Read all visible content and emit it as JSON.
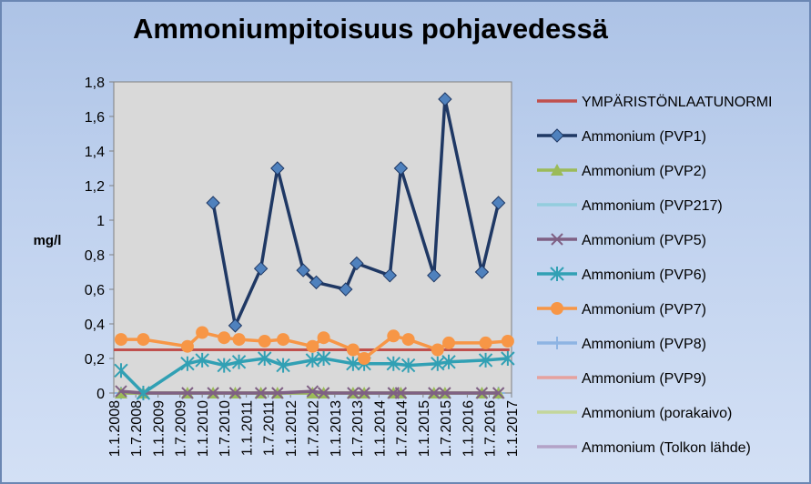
{
  "chart_data": {
    "type": "line",
    "title": "Ammoniumpitoisuus pohjavedessä",
    "ylabel": "mg/l",
    "xlabel": "",
    "ylim": [
      0,
      1.8
    ],
    "y_ticks": [
      "0",
      "0,2",
      "0,4",
      "0,6",
      "0,8",
      "1",
      "1,2",
      "1,4",
      "1,6",
      "1,8"
    ],
    "x_ticks": [
      "1.1.2008",
      "1.7.2008",
      "1.1.2009",
      "1.7.2009",
      "1.1.2010",
      "1.7.2010",
      "1.1.2011",
      "1.7.2011",
      "1.1.2012",
      "1.7.2012",
      "1.1.2013",
      "1.7.2013",
      "1.1.2014",
      "1.7.2014",
      "1.1.2015",
      "1.7.2015",
      "1.1.2016",
      "1.7.2016",
      "1.1.2017"
    ],
    "grid": false,
    "legend_position": "right",
    "plot_background": "#d9d9d9",
    "series": [
      {
        "name": "YMPÄRISTÖNLAATUNORMI",
        "color": "#c0504d",
        "marker": "none",
        "x": [
          "2008-01-01",
          "2016-12-15"
        ],
        "values": [
          0.25,
          0.25
        ]
      },
      {
        "name": "Ammonium (PVP1)",
        "color": "#1f3864",
        "marker": "diamond",
        "x": [
          "2010-04-01",
          "2010-10-01",
          "2011-05-01",
          "2011-09-15",
          "2012-04-15",
          "2012-08-01",
          "2013-04-01",
          "2013-07-01",
          "2014-04-01",
          "2014-07-01",
          "2015-04-01",
          "2015-07-01",
          "2016-05-01",
          "2016-09-15"
        ],
        "values": [
          1.1,
          0.39,
          0.72,
          1.3,
          0.71,
          0.64,
          0.6,
          0.75,
          0.68,
          1.3,
          0.68,
          1.7,
          0.7,
          1.1
        ]
      },
      {
        "name": "Ammonium (PVP2)",
        "color": "#9bbb59",
        "marker": "triangle",
        "x": [
          "2008-03-01",
          "2008-09-01",
          "2009-09-01",
          "2010-04-01",
          "2010-10-01",
          "2011-05-01",
          "2011-09-15",
          "2012-07-01",
          "2012-10-01",
          "2013-06-01",
          "2013-09-01",
          "2014-05-01",
          "2014-07-01",
          "2015-04-01",
          "2015-07-01",
          "2016-05-01",
          "2016-09-15"
        ],
        "values": [
          0,
          0,
          0,
          0,
          0,
          0,
          0,
          0,
          0,
          0,
          0,
          0,
          0,
          0,
          0,
          0,
          0
        ]
      },
      {
        "name": "Ammonium (PVP217)",
        "color": "#93cddd",
        "marker": "none",
        "x": [
          "2008-03-01",
          "2016-09-15"
        ],
        "values": [
          0,
          0
        ]
      },
      {
        "name": "Ammonium (PVP5)",
        "color": "#7f6084",
        "marker": "x",
        "x": [
          "2008-03-01",
          "2008-09-01",
          "2009-09-01",
          "2010-04-01",
          "2010-10-01",
          "2011-05-01",
          "2011-09-15",
          "2012-07-01",
          "2012-10-01",
          "2013-06-01",
          "2013-09-01",
          "2014-05-01",
          "2014-07-01",
          "2015-04-01",
          "2015-07-01",
          "2016-05-01",
          "2016-09-15"
        ],
        "values": [
          0.01,
          0,
          0,
          0,
          0,
          0,
          0,
          0.01,
          0,
          0,
          0,
          0,
          0,
          0,
          0,
          0,
          0
        ]
      },
      {
        "name": "Ammonium (PVP6)",
        "color": "#31a0b4",
        "marker": "asterisk",
        "x": [
          "2008-03-01",
          "2008-09-01",
          "2009-09-01",
          "2010-01-01",
          "2010-07-01",
          "2010-11-01",
          "2011-06-01",
          "2011-11-01",
          "2012-07-01",
          "2012-10-01",
          "2013-06-01",
          "2013-09-01",
          "2014-05-01",
          "2014-09-01",
          "2015-05-01",
          "2015-08-01",
          "2016-06-01",
          "2016-12-01"
        ],
        "values": [
          0.13,
          0,
          0.17,
          0.19,
          0.16,
          0.18,
          0.2,
          0.16,
          0.19,
          0.2,
          0.17,
          0.17,
          0.17,
          0.16,
          0.17,
          0.18,
          0.19,
          0.2
        ]
      },
      {
        "name": "Ammonium (PVP7)",
        "color": "#f79646",
        "marker": "circle",
        "x": [
          "2008-03-01",
          "2008-09-01",
          "2009-09-01",
          "2010-01-01",
          "2010-07-01",
          "2010-11-01",
          "2011-06-01",
          "2011-11-01",
          "2012-07-01",
          "2012-10-01",
          "2013-06-01",
          "2013-09-01",
          "2014-05-01",
          "2014-09-01",
          "2015-05-01",
          "2015-08-01",
          "2016-06-01",
          "2016-12-01"
        ],
        "values": [
          0.31,
          0.31,
          0.27,
          0.35,
          0.32,
          0.31,
          0.3,
          0.31,
          0.27,
          0.32,
          0.25,
          0.2,
          0.33,
          0.31,
          0.25,
          0.29,
          0.29,
          0.3
        ]
      },
      {
        "name": "Ammonium (PVP8)",
        "color": "#8eb4e3",
        "marker": "plus",
        "x": [
          "2008-03-01",
          "2016-09-15"
        ],
        "values": [
          0,
          0
        ]
      },
      {
        "name": "Ammonium (PVP9)",
        "color": "#e6a19e",
        "marker": "none",
        "x": [
          "2008-03-01",
          "2016-09-15"
        ],
        "values": [
          0,
          0
        ]
      },
      {
        "name": "Ammonium (porakaivo)",
        "color": "#c3d69b",
        "marker": "none",
        "x": [
          "2008-03-01",
          "2016-09-15"
        ],
        "values": [
          0,
          0
        ]
      },
      {
        "name": "Ammonium (Tolkon lähde)",
        "color": "#b3a2c7",
        "marker": "none",
        "x": [
          "2008-03-01",
          "2016-09-15"
        ],
        "values": [
          0,
          0
        ]
      }
    ]
  }
}
